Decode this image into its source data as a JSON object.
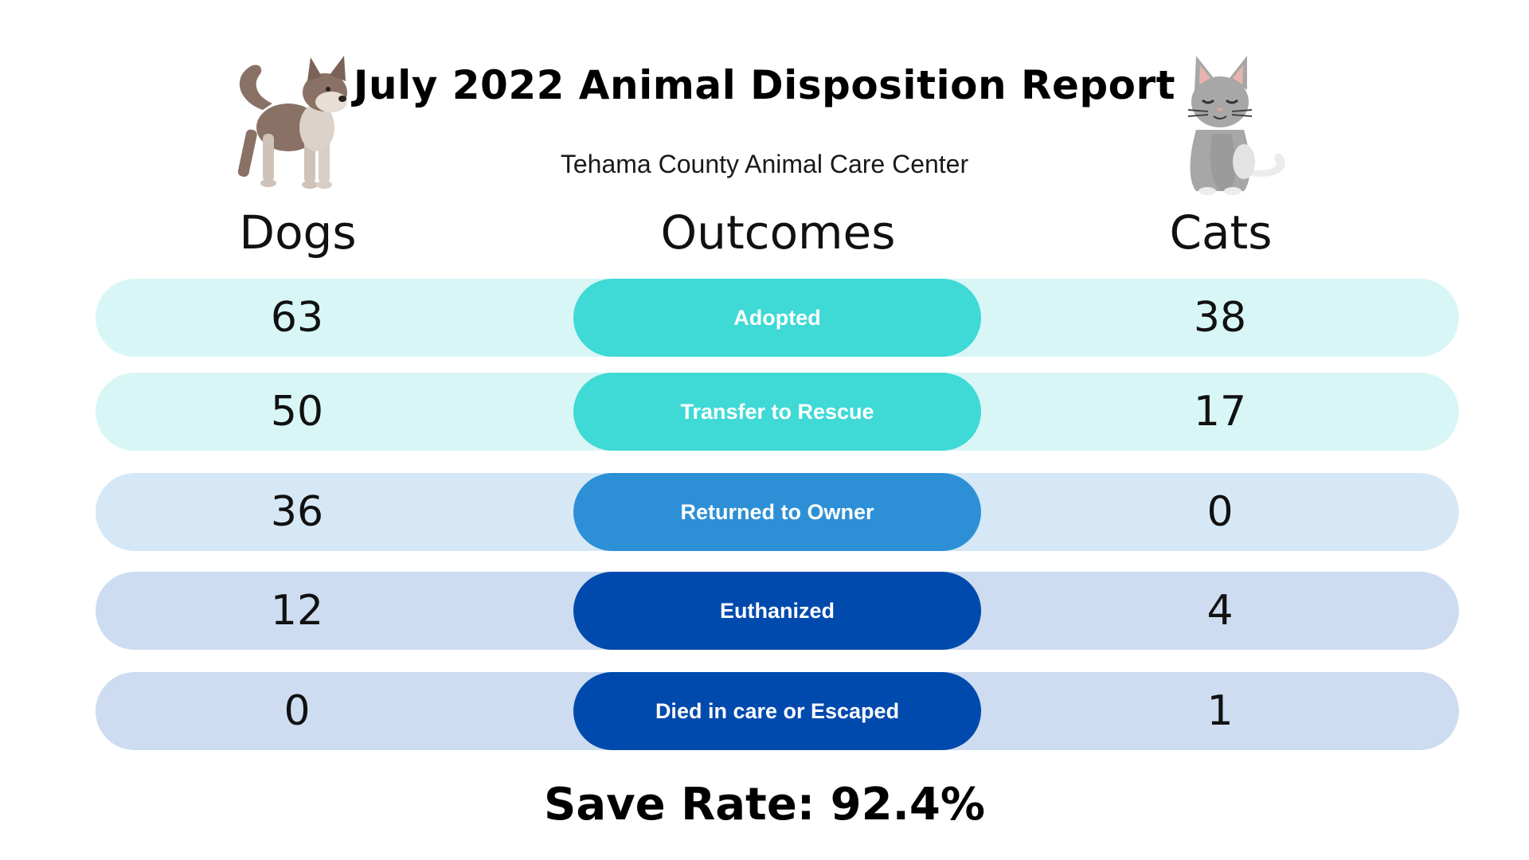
{
  "report": {
    "title": "July 2022 Animal Disposition Report",
    "subtitle": "Tehama County Animal Care Center",
    "columns": {
      "dogs": "Dogs",
      "outcomes": "Outcomes",
      "cats": "Cats"
    },
    "rows": [
      {
        "outcome": "Adopted",
        "dogs": "63",
        "cats": "38",
        "pill_color": "#3fd9d6",
        "row_color": "#d9f6f6"
      },
      {
        "outcome": "Transfer to Rescue",
        "dogs": "50",
        "cats": "17",
        "pill_color": "#3fd9d6",
        "row_color": "#d9f6f6"
      },
      {
        "outcome": "Returned to Owner",
        "dogs": "36",
        "cats": "0",
        "pill_color": "#2d90d6",
        "row_color": "#d6e8f6"
      },
      {
        "outcome": "Euthanized",
        "dogs": "12",
        "cats": "4",
        "pill_color": "#004aad",
        "row_color": "#cddcf0"
      },
      {
        "outcome": "Died in care or Escaped",
        "dogs": "0",
        "cats": "1",
        "pill_color": "#004aad",
        "row_color": "#cddcf0"
      }
    ],
    "save_rate": "Save Rate: 92.4%"
  },
  "illustrations": {
    "left": "dog-illustration",
    "right": "cat-illustration"
  }
}
